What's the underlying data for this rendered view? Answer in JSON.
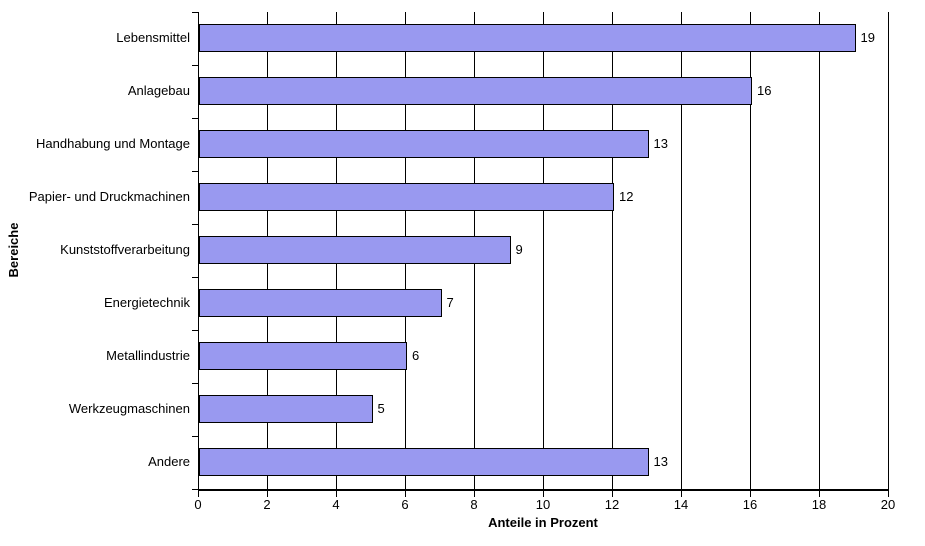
{
  "chart_data": {
    "type": "bar",
    "orientation": "horizontal",
    "categories": [
      "Lebensmittel",
      "Anlagebau",
      "Handhabung und Montage",
      "Papier- und Druckmachinen",
      "Kunststoffverarbeitung",
      "Energietechnik",
      "Metallindustrie",
      "Werkzeugmaschinen",
      "Andere"
    ],
    "values": [
      19,
      16,
      13,
      12,
      9,
      7,
      6,
      5,
      13
    ],
    "value_labels": [
      "19",
      "16",
      "13",
      "12",
      "9",
      "7",
      "6",
      "5",
      "13"
    ],
    "title": "",
    "xlabel": "Anteile in Prozent",
    "ylabel": "Bereiche",
    "xlim": [
      0,
      20
    ],
    "xticks": [
      0,
      2,
      4,
      6,
      8,
      10,
      12,
      14,
      16,
      18,
      20
    ],
    "xtick_labels": [
      "0",
      "2",
      "4",
      "6",
      "8",
      "10",
      "12",
      "14",
      "16",
      "18",
      "20"
    ],
    "grid": "vertical",
    "legend": "none",
    "bar_color": "#9999F0",
    "bar_border_color": "#000000",
    "axis_color": "#000000",
    "background_color": "#FFFFFF"
  }
}
